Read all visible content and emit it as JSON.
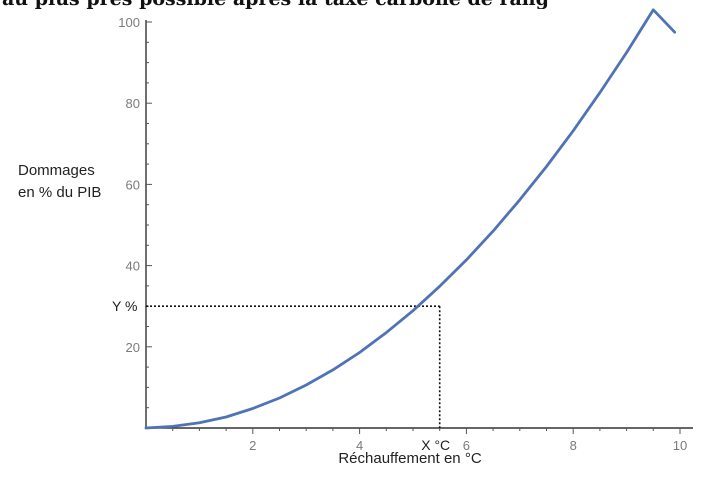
{
  "page_header_fragment": "au plus près possible après la taxe carbone de rang",
  "chart_data": {
    "type": "line",
    "title": "",
    "xlabel": "Réchauffement en °C",
    "ylabel_lines": [
      "Dommages",
      "en % du PIB"
    ],
    "xlim": [
      0,
      10.2
    ],
    "ylim": [
      0,
      100
    ],
    "x_ticks": [
      2,
      4,
      6,
      8,
      10
    ],
    "y_ticks": [
      20,
      40,
      60,
      80,
      100
    ],
    "grid": false,
    "legend": "none",
    "series": [
      {
        "color": "#4f73b5",
        "x": [
          0,
          0.5,
          1,
          1.5,
          2,
          2.5,
          3,
          3.5,
          4,
          4.5,
          5,
          5.5,
          6,
          6.5,
          7,
          7.5,
          8,
          8.5,
          9,
          9.5,
          9.9
        ],
        "y": [
          0,
          0.4,
          1.3,
          2.7,
          4.8,
          7.4,
          10.6,
          14.3,
          18.6,
          23.5,
          28.9,
          34.9,
          41.4,
          48.5,
          56.2,
          64.4,
          73.2,
          82.6,
          92.5,
          103,
          97.5
        ]
      }
    ],
    "annotations": [
      {
        "text": "Y %",
        "y": 30
      },
      {
        "text": "X °C",
        "x": 5.5
      }
    ]
  }
}
